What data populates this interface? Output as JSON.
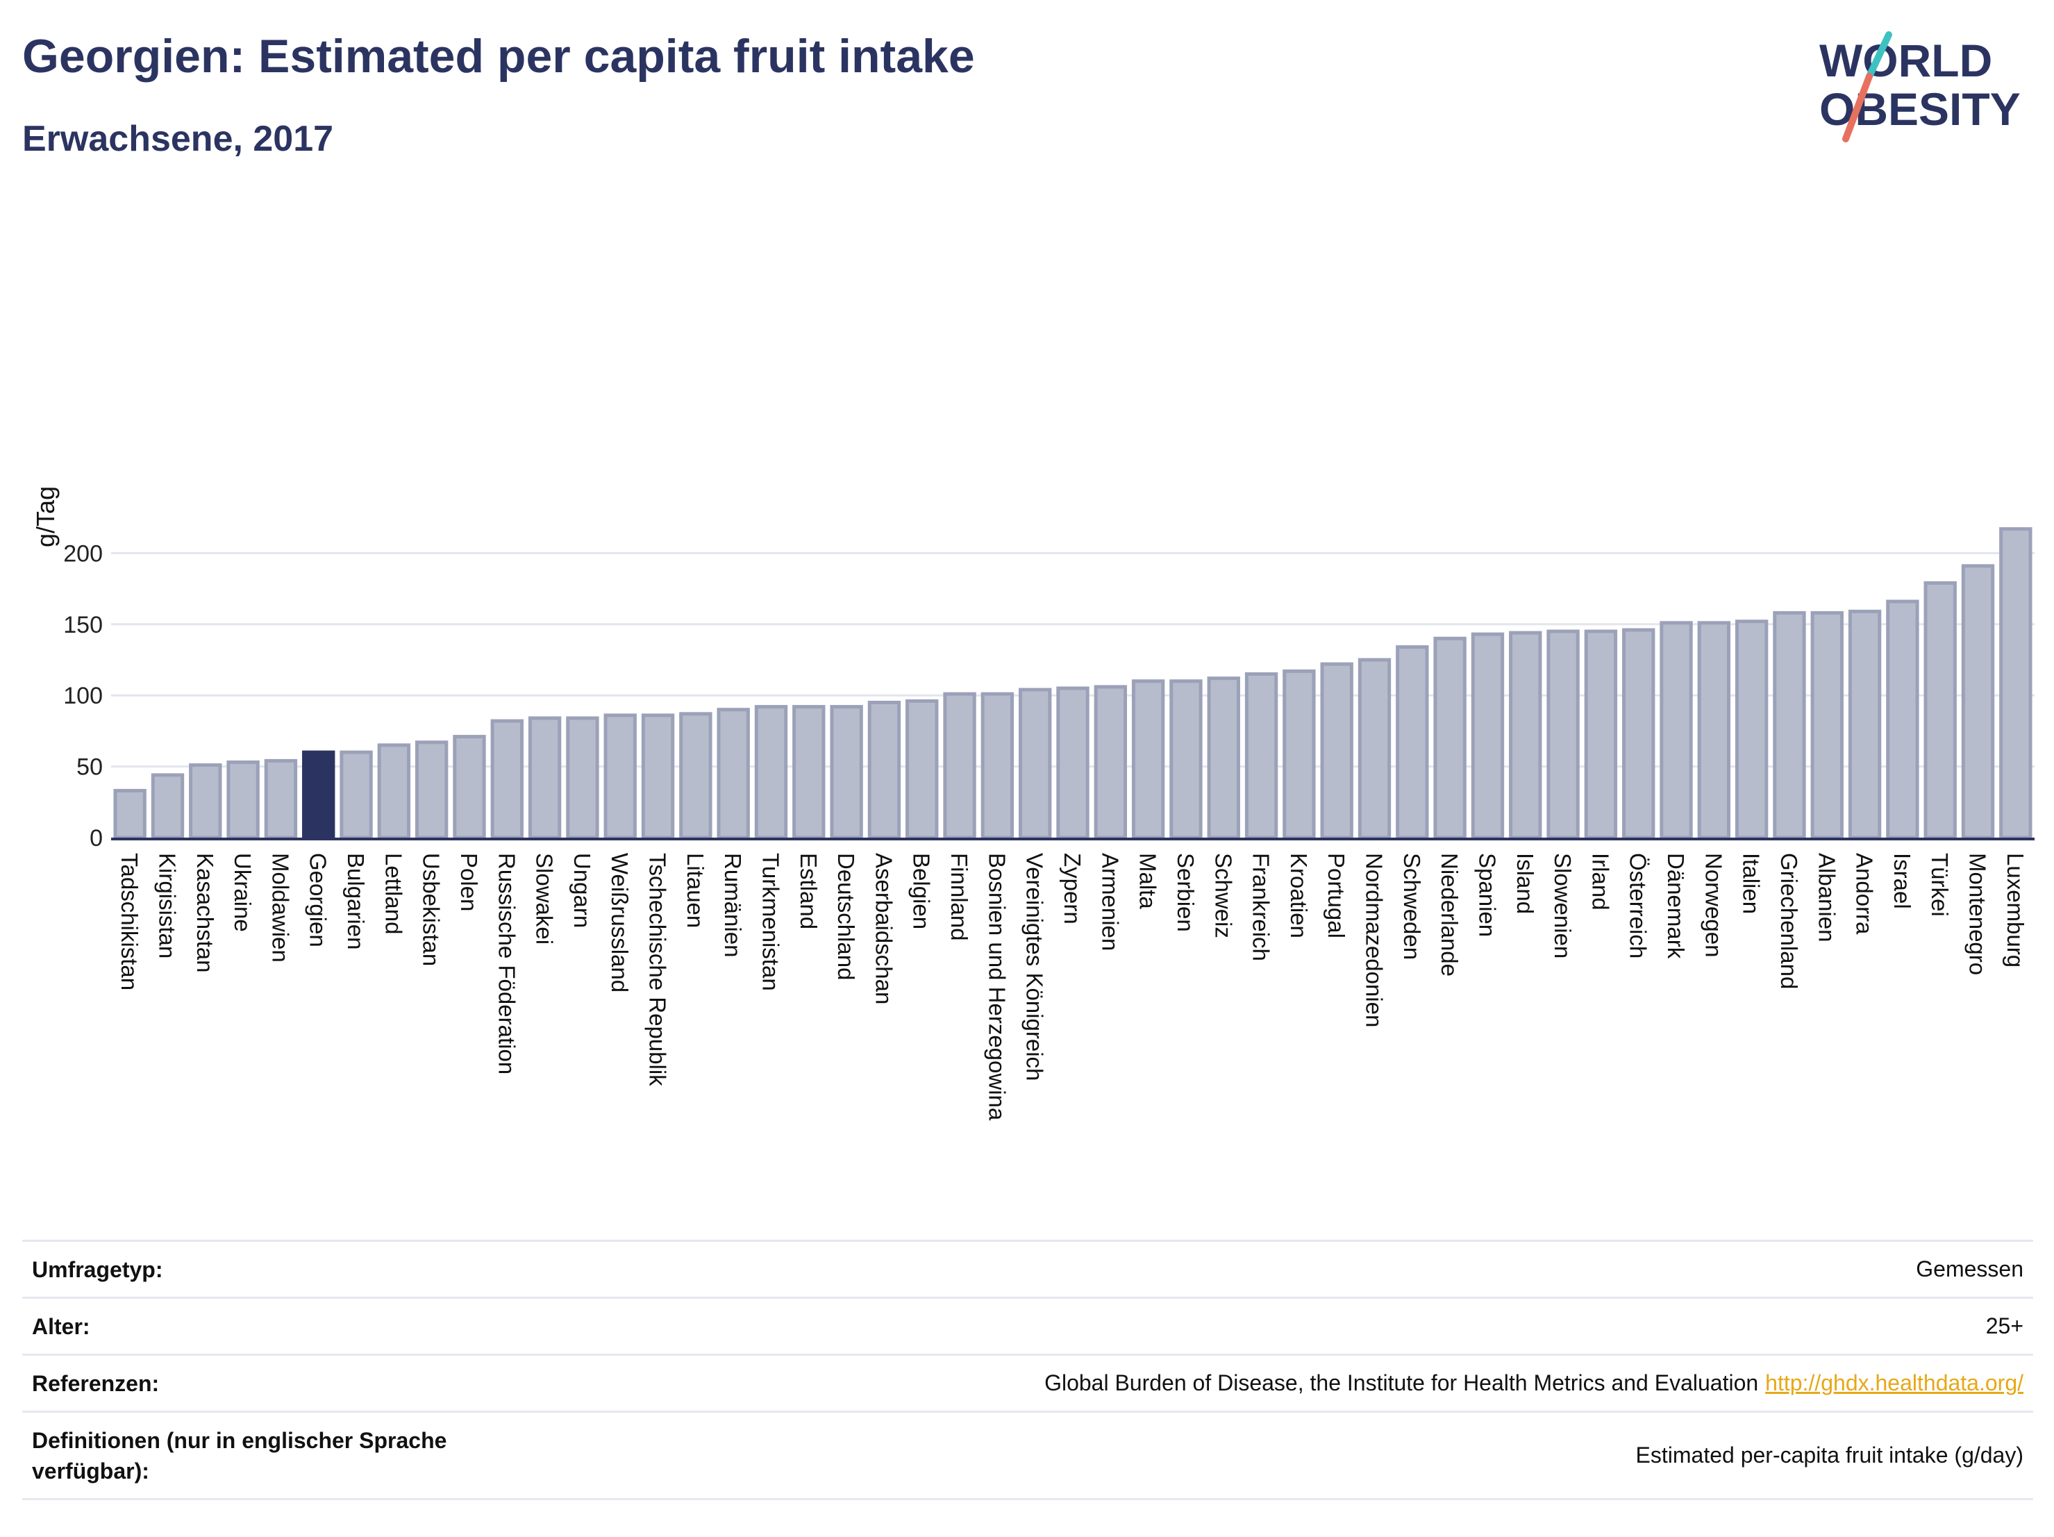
{
  "title": "Georgien: Estimated per capita fruit intake",
  "subtitle": "Erwachsene, 2017",
  "logo": {
    "line1": "WORLD",
    "line2": "OBESITY",
    "text_color": "#2b3461",
    "slash_colors": [
      "#3ec1c1",
      "#e8705f"
    ]
  },
  "colors": {
    "bar_default": "#b7bccc",
    "bar_default_stroke": "#9ba1b8",
    "bar_highlight": "#2b3461",
    "grid": "#e3e5ee",
    "axis": "#2b3461"
  },
  "chart_data": {
    "type": "bar",
    "ylabel": "g/Tag",
    "xlabel": "",
    "ylim": [
      0,
      225
    ],
    "yticks": [
      0,
      50,
      100,
      150,
      200
    ],
    "grid": true,
    "highlight": "Georgien",
    "categories": [
      "Tadschikistan",
      "Kirgisistan",
      "Kasachstan",
      "Ukraine",
      "Moldawien",
      "Georgien",
      "Bulgarien",
      "Lettland",
      "Usbekistan",
      "Polen",
      "Russische Föderation",
      "Slowakei",
      "Ungarn",
      "Weißrussland",
      "Tschechische Republik",
      "Litauen",
      "Rumänien",
      "Turkmenistan",
      "Estland",
      "Deutschland",
      "Aserbaidschan",
      "Belgien",
      "Finnland",
      "Bosnien und Herzegowina",
      "Vereinigtes Königreich",
      "Zypern",
      "Armenien",
      "Malta",
      "Serbien",
      "Schweiz",
      "Frankreich",
      "Kroatien",
      "Portugal",
      "Nordmazedonien",
      "Schweden",
      "Niederlande",
      "Spanien",
      "Island",
      "Slowenien",
      "Irland",
      "Österreich",
      "Dänemark",
      "Norwegen",
      "Italien",
      "Griechenland",
      "Albanien",
      "Andorra",
      "Israel",
      "Türkei",
      "Montenegro",
      "Luxemburg"
    ],
    "values": [
      33,
      44,
      51,
      53,
      54,
      60,
      60,
      65,
      67,
      71,
      82,
      84,
      84,
      86,
      86,
      87,
      90,
      92,
      92,
      92,
      95,
      96,
      101,
      101,
      104,
      105,
      106,
      110,
      110,
      112,
      115,
      117,
      122,
      125,
      134,
      140,
      143,
      144,
      145,
      145,
      146,
      151,
      151,
      152,
      158,
      158,
      159,
      166,
      179,
      191,
      217
    ]
  },
  "info": {
    "rows": [
      {
        "label": "Umfragetyp:",
        "value": "Gemessen"
      },
      {
        "label": "Alter:",
        "value": "25+"
      },
      {
        "label": "Referenzen:",
        "value": "Global Burden of Disease, the Institute for Health Metrics and Evaluation",
        "link": "http://ghdx.healthdata.org/"
      },
      {
        "label": "Definitionen (nur in englischer Sprache verfügbar):",
        "value": "Estimated per-capita fruit intake (g/day)"
      }
    ]
  }
}
